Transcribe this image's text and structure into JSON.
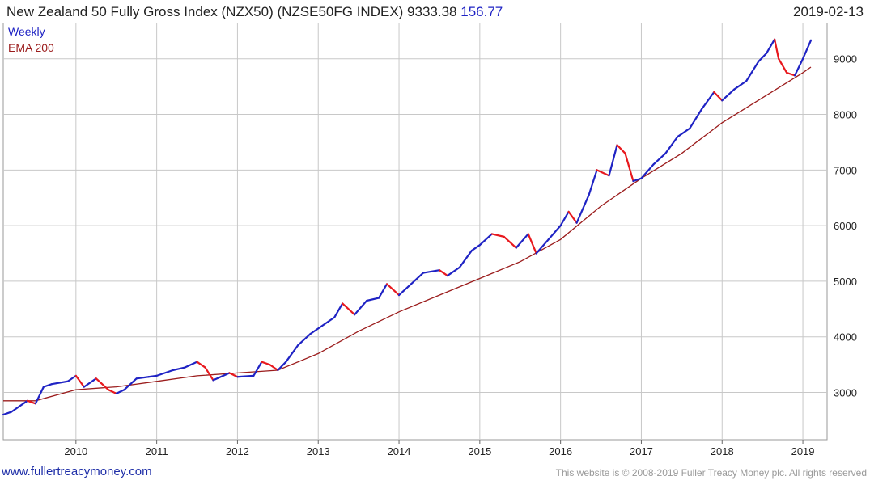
{
  "header": {
    "title": "New Zealand 50 Fully Gross Index (NZX50) (NZSE50FG INDEX) 9333.38",
    "change": "156.77",
    "date": "2019-02-13"
  },
  "footer": {
    "site": "www.fullertreacymoney.com",
    "copyright": "This website is © 2008-2019 Fuller Treacy Money plc. All rights reserved"
  },
  "colors": {
    "up": "#1f23c4",
    "down": "#e8191e",
    "ema": "#9b1c1c",
    "grid": "#c8c8c8"
  },
  "chart_data": {
    "type": "line",
    "legend": [
      "Weekly",
      "EMA 200"
    ],
    "legend_placement": "top-left",
    "x_ticks": [
      "2010",
      "2011",
      "2012",
      "2013",
      "2014",
      "2015",
      "2016",
      "2017",
      "2018",
      "2019"
    ],
    "y_ticks": [
      3000,
      4000,
      5000,
      6000,
      7000,
      8000,
      9000
    ],
    "ylim": [
      2150,
      9650
    ],
    "xlim": [
      2009.1,
      2019.3
    ],
    "grid": true,
    "series": [
      {
        "name": "Weekly",
        "x": [
          2009.1,
          2009.2,
          2009.4,
          2009.5,
          2009.6,
          2009.7,
          2009.9,
          2010.0,
          2010.1,
          2010.25,
          2010.4,
          2010.5,
          2010.6,
          2010.75,
          2010.9,
          2011.0,
          2011.2,
          2011.35,
          2011.5,
          2011.6,
          2011.7,
          2011.9,
          2012.0,
          2012.2,
          2012.3,
          2012.4,
          2012.5,
          2012.6,
          2012.75,
          2012.9,
          2013.0,
          2013.2,
          2013.3,
          2013.45,
          2013.6,
          2013.75,
          2013.85,
          2014.0,
          2014.15,
          2014.3,
          2014.5,
          2014.6,
          2014.75,
          2014.9,
          2015.0,
          2015.15,
          2015.3,
          2015.45,
          2015.6,
          2015.7,
          2015.85,
          2016.0,
          2016.1,
          2016.2,
          2016.35,
          2016.45,
          2016.6,
          2016.7,
          2016.8,
          2016.9,
          2017.0,
          2017.15,
          2017.3,
          2017.45,
          2017.6,
          2017.75,
          2017.9,
          2018.0,
          2018.15,
          2018.3,
          2018.45,
          2018.55,
          2018.65,
          2018.7,
          2018.8,
          2018.9,
          2019.0,
          2019.1
        ],
        "values": [
          2600,
          2650,
          2850,
          2800,
          3100,
          3150,
          3200,
          3300,
          3100,
          3250,
          3050,
          2980,
          3050,
          3250,
          3280,
          3300,
          3400,
          3450,
          3550,
          3450,
          3220,
          3350,
          3280,
          3300,
          3550,
          3500,
          3400,
          3550,
          3850,
          4050,
          4150,
          4350,
          4600,
          4400,
          4650,
          4700,
          4950,
          4750,
          4950,
          5150,
          5200,
          5100,
          5250,
          5550,
          5650,
          5850,
          5800,
          5600,
          5850,
          5500,
          5750,
          6000,
          6250,
          6050,
          6550,
          7000,
          6900,
          7450,
          7300,
          6800,
          6850,
          7100,
          7300,
          7600,
          7750,
          8100,
          8400,
          8250,
          8450,
          8600,
          8950,
          9100,
          9350,
          9000,
          8750,
          8700,
          9000,
          9333.38
        ]
      },
      {
        "name": "EMA 200",
        "x": [
          2009.1,
          2009.5,
          2010.0,
          2010.5,
          2011.0,
          2011.5,
          2012.0,
          2012.5,
          2013.0,
          2013.5,
          2014.0,
          2014.5,
          2015.0,
          2015.5,
          2016.0,
          2016.5,
          2017.0,
          2017.5,
          2018.0,
          2018.5,
          2019.0,
          2019.1
        ],
        "values": [
          2850,
          2850,
          3050,
          3100,
          3200,
          3300,
          3350,
          3400,
          3700,
          4100,
          4450,
          4750,
          5050,
          5350,
          5750,
          6350,
          6850,
          7300,
          7850,
          8300,
          8750,
          8850
        ]
      }
    ]
  }
}
